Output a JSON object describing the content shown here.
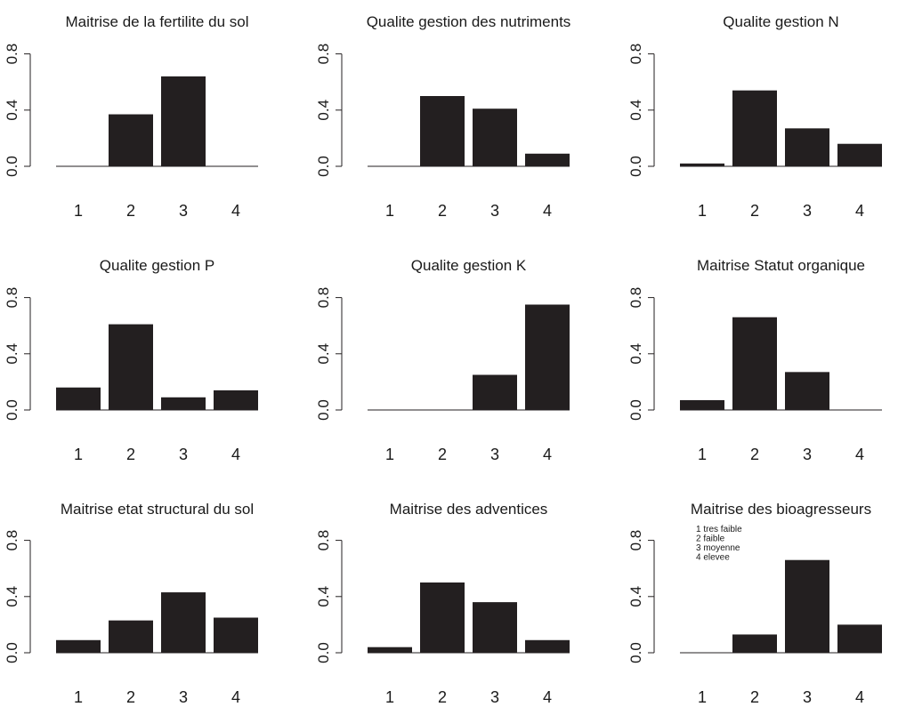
{
  "chart_data": [
    {
      "type": "bar",
      "title": "Maitrise de la fertilite du sol",
      "categories": [
        "1",
        "2",
        "3",
        "4"
      ],
      "values": [
        0.0,
        0.37,
        0.64,
        0.0
      ],
      "ylim": [
        0,
        0.8
      ],
      "yticks": [
        "0.0",
        "0.4",
        "0.8"
      ]
    },
    {
      "type": "bar",
      "title": "Qualite gestion des nutriments",
      "categories": [
        "1",
        "2",
        "3",
        "4"
      ],
      "values": [
        0.0,
        0.5,
        0.41,
        0.09
      ],
      "ylim": [
        0,
        0.8
      ],
      "yticks": [
        "0.0",
        "0.4",
        "0.8"
      ]
    },
    {
      "type": "bar",
      "title": "Qualite gestion N",
      "categories": [
        "1",
        "2",
        "3",
        "4"
      ],
      "values": [
        0.02,
        0.54,
        0.27,
        0.16
      ],
      "ylim": [
        0,
        0.8
      ],
      "yticks": [
        "0.0",
        "0.4",
        "0.8"
      ]
    },
    {
      "type": "bar",
      "title": "Qualite gestion P",
      "categories": [
        "1",
        "2",
        "3",
        "4"
      ],
      "values": [
        0.16,
        0.61,
        0.09,
        0.14
      ],
      "ylim": [
        0,
        0.8
      ],
      "yticks": [
        "0.0",
        "0.4",
        "0.8"
      ]
    },
    {
      "type": "bar",
      "title": "Qualite gestion K",
      "categories": [
        "1",
        "2",
        "3",
        "4"
      ],
      "values": [
        0.0,
        0.0,
        0.25,
        0.75
      ],
      "ylim": [
        0,
        0.8
      ],
      "yticks": [
        "0.0",
        "0.4",
        "0.8"
      ]
    },
    {
      "type": "bar",
      "title": "Maitrise Statut organique",
      "categories": [
        "1",
        "2",
        "3",
        "4"
      ],
      "values": [
        0.07,
        0.66,
        0.27,
        0.0
      ],
      "ylim": [
        0,
        0.8
      ],
      "yticks": [
        "0.0",
        "0.4",
        "0.8"
      ]
    },
    {
      "type": "bar",
      "title": "Maitrise etat structural du sol",
      "categories": [
        "1",
        "2",
        "3",
        "4"
      ],
      "values": [
        0.09,
        0.23,
        0.43,
        0.25
      ],
      "ylim": [
        0,
        0.8
      ],
      "yticks": [
        "0.0",
        "0.4",
        "0.8"
      ]
    },
    {
      "type": "bar",
      "title": "Maitrise des adventices",
      "categories": [
        "1",
        "2",
        "3",
        "4"
      ],
      "values": [
        0.04,
        0.5,
        0.36,
        0.09
      ],
      "ylim": [
        0,
        0.8
      ],
      "yticks": [
        "0.0",
        "0.4",
        "0.8"
      ]
    },
    {
      "type": "bar",
      "title": "Maitrise des bioagresseurs",
      "categories": [
        "1",
        "2",
        "3",
        "4"
      ],
      "values": [
        0.0,
        0.13,
        0.66,
        0.2
      ],
      "ylim": [
        0,
        0.8
      ],
      "yticks": [
        "0.0",
        "0.4",
        "0.8"
      ],
      "legend": [
        "1  tres faible",
        "2  faible",
        "3  moyenne",
        "4  elevee"
      ]
    }
  ],
  "colors": {
    "bar": "#231f20",
    "axis": "#231f20",
    "background": "#ffffff"
  }
}
